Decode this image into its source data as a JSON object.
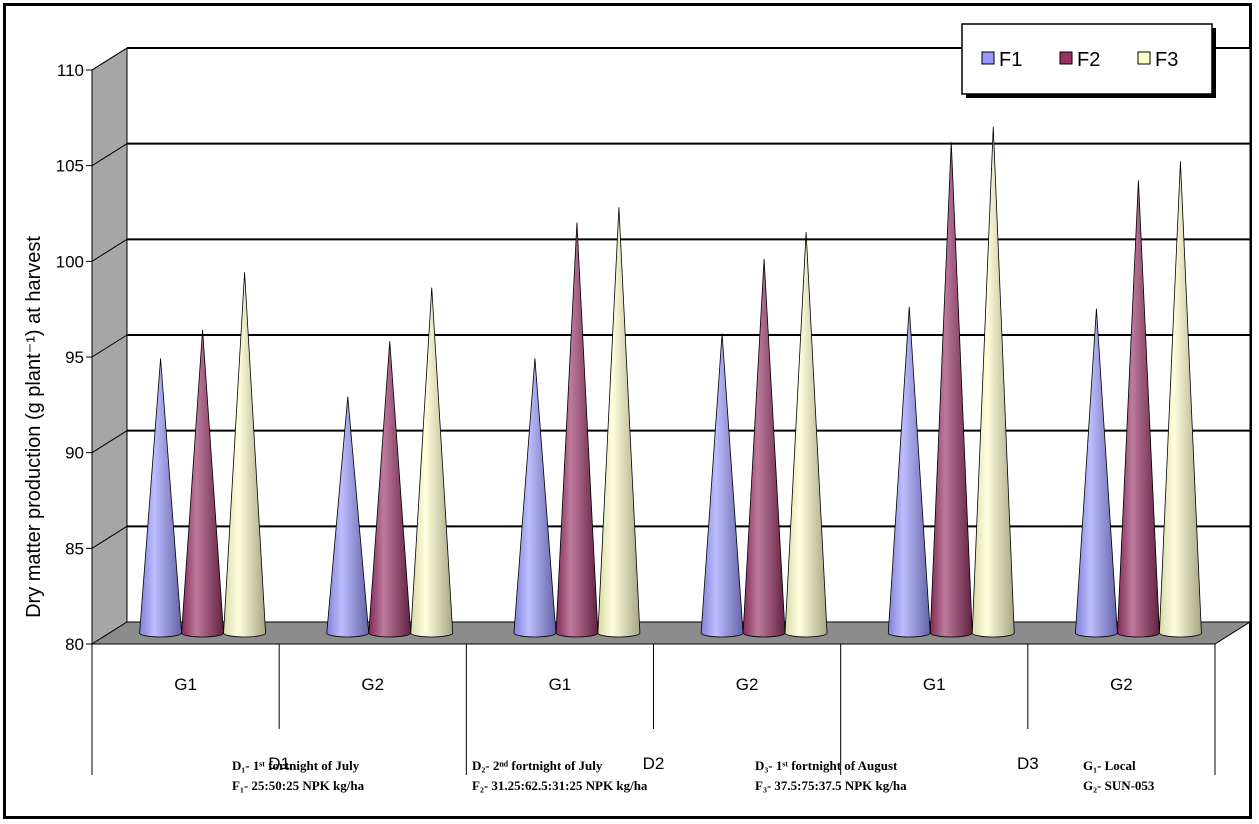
{
  "chart_data": {
    "type": "bar",
    "ylabel": "Dry matter production (g plant⁻¹) at harvest",
    "ylim": [
      80,
      110
    ],
    "yticks": [
      "80",
      "85",
      "90",
      "95",
      "100",
      "105",
      "110"
    ],
    "grid": true,
    "legend": "top-right",
    "groups": [
      {
        "label": "D1",
        "subgroups": [
          "G1",
          "G2"
        ]
      },
      {
        "label": "D2",
        "subgroups": [
          "G1",
          "G2"
        ]
      },
      {
        "label": "D3",
        "subgroups": [
          "G1",
          "G2"
        ]
      }
    ],
    "categories": [
      "D1 G1",
      "D1 G2",
      "D2 G1",
      "D2 G2",
      "D3 G1",
      "D3 G2"
    ],
    "series": [
      {
        "name": "F1",
        "color": "#9999ff",
        "values": [
          94.3,
          92.3,
          94.3,
          95.6,
          97.0,
          96.9
        ]
      },
      {
        "name": "F2",
        "color": "#993366",
        "values": [
          95.8,
          95.2,
          101.4,
          99.5,
          105.6,
          103.6
        ]
      },
      {
        "name": "F3",
        "color": "#ffffcc",
        "values": [
          98.8,
          98.0,
          102.2,
          100.9,
          106.4,
          104.6
        ]
      }
    ],
    "notes": [
      {
        "lines": [
          "D₁- 1ˢᵗ fortnight of July",
          "F₁- 25:50:25 NPK kg/ha"
        ]
      },
      {
        "lines": [
          "D₂- 2ⁿᵈ fortnight of July",
          "F₂- 31.25:62.5:31:25 NPK kg/ha"
        ]
      },
      {
        "lines": [
          "D₃- 1ˢᵗ fortnight of August",
          "F₃- 37.5:75:37.5 NPK kg/ha"
        ]
      },
      {
        "lines": [
          "G₁- Local",
          "G₂- SUN-053"
        ]
      }
    ]
  }
}
